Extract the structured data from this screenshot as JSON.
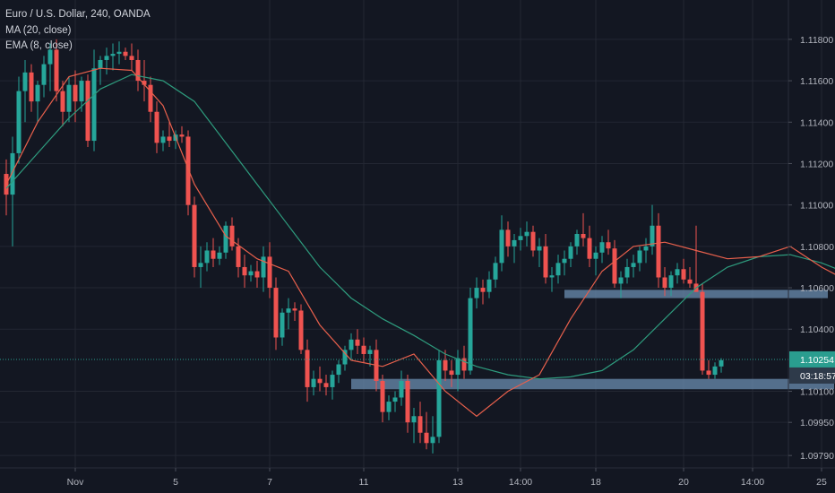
{
  "legend": {
    "symbol": "Euro / U.S. Dollar, 240, OANDA",
    "ma": "MA (20, close)",
    "ema": "EMA (8, close)"
  },
  "colors": {
    "background": "#131722",
    "grid": "#232733",
    "up": "#26a69a",
    "down": "#ef5350",
    "ma": "#2e9c7e",
    "ema": "#e8604c",
    "zone": "#6b8eb0",
    "price_badge": "#2a9d8f",
    "timer_badge": "#2e3a4a",
    "axis_text": "#b2b5be"
  },
  "chart_data": {
    "type": "candlestick",
    "symbol": "Euro / U.S. Dollar, 240, OANDA",
    "indicators": [
      "MA (20, close)",
      "EMA (8, close)"
    ],
    "ylim": [
      1.0973,
      1.1199
    ],
    "y_ticks": [
      "1.11800",
      "1.11600",
      "1.11400",
      "1.11200",
      "1.11000",
      "1.10800",
      "1.10600",
      "1.10400",
      "1.10100",
      "1.09950",
      "1.09790"
    ],
    "y_tick_values": [
      1.118,
      1.116,
      1.114,
      1.112,
      1.11,
      1.108,
      1.106,
      1.104,
      1.101,
      1.0995,
      1.0979
    ],
    "x_ticks": [
      {
        "label": "Nov",
        "index": 11
      },
      {
        "label": "5",
        "index": 27
      },
      {
        "label": "7",
        "index": 42
      },
      {
        "label": "11",
        "index": 57
      },
      {
        "label": "13",
        "index": 72
      },
      {
        "label": "14:00",
        "index": 82
      },
      {
        "label": "18",
        "index": 94
      },
      {
        "label": "20",
        "index": 108
      },
      {
        "label": "14:00",
        "index": 119
      },
      {
        "label": "25",
        "index": 130
      }
    ],
    "current_price": "1.10254",
    "current_price_value": 1.10254,
    "countdown": "03:18:57",
    "zones": [
      {
        "from_index": 89,
        "to_index": 131,
        "low": 1.1055,
        "high": 1.1059
      },
      {
        "from_index": 55,
        "to_index": 132,
        "low": 1.1011,
        "high": 1.1016
      }
    ],
    "candles": [
      [
        1.1115,
        1.1122,
        1.1095,
        1.1105
      ],
      [
        1.1105,
        1.1133,
        1.108,
        1.1125
      ],
      [
        1.1125,
        1.1162,
        1.112,
        1.1155
      ],
      [
        1.1155,
        1.117,
        1.114,
        1.1164
      ],
      [
        1.1164,
        1.1168,
        1.1145,
        1.115
      ],
      [
        1.115,
        1.116,
        1.114,
        1.1158
      ],
      [
        1.1158,
        1.1172,
        1.1152,
        1.1168
      ],
      [
        1.1168,
        1.1178,
        1.1155,
        1.1175
      ],
      [
        1.1175,
        1.118,
        1.115,
        1.1155
      ],
      [
        1.1155,
        1.116,
        1.1138,
        1.1145
      ],
      [
        1.1145,
        1.1162,
        1.114,
        1.1158
      ],
      [
        1.1158,
        1.1165,
        1.114,
        1.115
      ],
      [
        1.115,
        1.1162,
        1.1145,
        1.116
      ],
      [
        1.116,
        1.1163,
        1.1128,
        1.1131
      ],
      [
        1.1131,
        1.1175,
        1.1126,
        1.1166
      ],
      [
        1.1166,
        1.1172,
        1.1158,
        1.117
      ],
      [
        1.117,
        1.1176,
        1.1163,
        1.1172
      ],
      [
        1.1172,
        1.1178,
        1.1165,
        1.1173
      ],
      [
        1.1173,
        1.1179,
        1.1168,
        1.1174
      ],
      [
        1.1174,
        1.1176,
        1.117,
        1.1172
      ],
      [
        1.1172,
        1.1178,
        1.1165,
        1.117
      ],
      [
        1.117,
        1.1175,
        1.1155,
        1.116
      ],
      [
        1.116,
        1.117,
        1.115,
        1.1158
      ],
      [
        1.1158,
        1.1162,
        1.114,
        1.1145
      ],
      [
        1.1145,
        1.115,
        1.1125,
        1.113
      ],
      [
        1.113,
        1.1136,
        1.1126,
        1.1133
      ],
      [
        1.1133,
        1.114,
        1.1128,
        1.1131
      ],
      [
        1.1131,
        1.1136,
        1.1127,
        1.1134
      ],
      [
        1.1134,
        1.1138,
        1.113,
        1.1133
      ],
      [
        1.1133,
        1.1136,
        1.1095,
        1.11
      ],
      [
        1.11,
        1.1104,
        1.1065,
        1.107
      ],
      [
        1.107,
        1.108,
        1.106,
        1.1072
      ],
      [
        1.1072,
        1.1082,
        1.1068,
        1.1078
      ],
      [
        1.1078,
        1.1084,
        1.107,
        1.1074
      ],
      [
        1.1074,
        1.108,
        1.1071,
        1.1077
      ],
      [
        1.1077,
        1.1092,
        1.1074,
        1.109
      ],
      [
        1.109,
        1.1094,
        1.1078,
        1.108
      ],
      [
        1.108,
        1.1084,
        1.1065,
        1.107
      ],
      [
        1.107,
        1.1076,
        1.106,
        1.1066
      ],
      [
        1.1066,
        1.1071,
        1.1063,
        1.1068
      ],
      [
        1.1068,
        1.1073,
        1.106,
        1.1065
      ],
      [
        1.1065,
        1.108,
        1.1058,
        1.1075
      ],
      [
        1.1075,
        1.1082,
        1.1055,
        1.106
      ],
      [
        1.106,
        1.1065,
        1.103,
        1.1036
      ],
      [
        1.1036,
        1.105,
        1.1032,
        1.1048
      ],
      [
        1.1048,
        1.1055,
        1.104,
        1.105
      ],
      [
        1.105,
        1.1053,
        1.1044,
        1.1049
      ],
      [
        1.1049,
        1.1052,
        1.1028,
        1.103
      ],
      [
        1.103,
        1.1035,
        1.1005,
        1.1012
      ],
      [
        1.1012,
        1.102,
        1.1008,
        1.1016
      ],
      [
        1.1016,
        1.1022,
        1.101,
        1.1014
      ],
      [
        1.1014,
        1.1018,
        1.1008,
        1.1012
      ],
      [
        1.1012,
        1.102,
        1.1006,
        1.1018
      ],
      [
        1.1018,
        1.1025,
        1.1014,
        1.1023
      ],
      [
        1.1023,
        1.1032,
        1.102,
        1.103
      ],
      [
        1.103,
        1.1038,
        1.1025,
        1.1035
      ],
      [
        1.1035,
        1.104,
        1.1028,
        1.1032
      ],
      [
        1.1032,
        1.1036,
        1.1024,
        1.1028
      ],
      [
        1.1028,
        1.1032,
        1.1022,
        1.103
      ],
      [
        1.103,
        1.1035,
        1.101,
        1.1015
      ],
      [
        1.1015,
        1.1018,
        1.0995,
        1.1
      ],
      [
        1.1,
        1.1008,
        1.0996,
        1.1005
      ],
      [
        1.1005,
        1.101,
        1.1,
        1.1007
      ],
      [
        1.1007,
        1.102,
        1.1003,
        1.1015
      ],
      [
        1.1015,
        1.1018,
        1.099,
        1.0995
      ],
      [
        1.0995,
        1.1002,
        1.0985,
        1.0998
      ],
      [
        1.0998,
        1.1005,
        1.0985,
        1.099
      ],
      [
        1.099,
        1.1,
        1.0982,
        1.0985
      ],
      [
        1.0985,
        1.0998,
        1.098,
        1.0988
      ],
      [
        1.0988,
        1.103,
        1.0985,
        1.1025
      ],
      [
        1.1025,
        1.103,
        1.1015,
        1.102
      ],
      [
        1.102,
        1.1025,
        1.1012,
        1.1018
      ],
      [
        1.1018,
        1.103,
        1.101,
        1.1026
      ],
      [
        1.1026,
        1.1032,
        1.1016,
        1.102
      ],
      [
        1.102,
        1.106,
        1.1018,
        1.1055
      ],
      [
        1.1055,
        1.1065,
        1.105,
        1.106
      ],
      [
        1.106,
        1.1064,
        1.1052,
        1.1058
      ],
      [
        1.1058,
        1.1068,
        1.1055,
        1.1064
      ],
      [
        1.1064,
        1.1075,
        1.106,
        1.1072
      ],
      [
        1.1072,
        1.1095,
        1.1068,
        1.1088
      ],
      [
        1.1088,
        1.1092,
        1.1075,
        1.108
      ],
      [
        1.108,
        1.1086,
        1.1072,
        1.1083
      ],
      [
        1.1083,
        1.1089,
        1.1078,
        1.1085
      ],
      [
        1.1085,
        1.1092,
        1.108,
        1.1087
      ],
      [
        1.1087,
        1.109,
        1.1075,
        1.1078
      ],
      [
        1.1078,
        1.1084,
        1.107,
        1.108
      ],
      [
        1.108,
        1.1086,
        1.1062,
        1.1065
      ],
      [
        1.1065,
        1.107,
        1.1058,
        1.1066
      ],
      [
        1.1066,
        1.1076,
        1.1062,
        1.1072
      ],
      [
        1.1072,
        1.1078,
        1.1066,
        1.1074
      ],
      [
        1.1074,
        1.1082,
        1.107,
        1.108
      ],
      [
        1.108,
        1.1088,
        1.1076,
        1.1086
      ],
      [
        1.1086,
        1.1096,
        1.108,
        1.1084
      ],
      [
        1.1084,
        1.109,
        1.107,
        1.1074
      ],
      [
        1.1074,
        1.108,
        1.1066,
        1.1077
      ],
      [
        1.1077,
        1.1085,
        1.1072,
        1.1082
      ],
      [
        1.1082,
        1.1088,
        1.1076,
        1.1079
      ],
      [
        1.1079,
        1.1083,
        1.106,
        1.1062
      ],
      [
        1.1062,
        1.1068,
        1.1055,
        1.1065
      ],
      [
        1.1065,
        1.1074,
        1.1062,
        1.107
      ],
      [
        1.107,
        1.1076,
        1.1065,
        1.1072
      ],
      [
        1.1072,
        1.108,
        1.1068,
        1.1078
      ],
      [
        1.1078,
        1.1084,
        1.1072,
        1.108
      ],
      [
        1.108,
        1.11,
        1.1076,
        1.109
      ],
      [
        1.109,
        1.1096,
        1.106,
        1.1065
      ],
      [
        1.1065,
        1.107,
        1.1056,
        1.106
      ],
      [
        1.106,
        1.1068,
        1.1056,
        1.1066
      ],
      [
        1.1066,
        1.1072,
        1.1062,
        1.1069
      ],
      [
        1.1069,
        1.1074,
        1.1062,
        1.1064
      ],
      [
        1.1064,
        1.107,
        1.106,
        1.1062
      ],
      [
        1.1062,
        1.109,
        1.1058,
        1.1058
      ],
      [
        1.1058,
        1.1062,
        1.1018,
        1.102
      ],
      [
        1.102,
        1.1025,
        1.1016,
        1.1018
      ],
      [
        1.1018,
        1.1024,
        1.1016,
        1.1022
      ],
      [
        1.1022,
        1.1026,
        1.1019,
        1.1025
      ]
    ],
    "ma": [
      [
        0,
        1.1108
      ],
      [
        5,
        1.1125
      ],
      [
        10,
        1.1142
      ],
      [
        15,
        1.1156
      ],
      [
        20,
        1.1163
      ],
      [
        25,
        1.116
      ],
      [
        30,
        1.115
      ],
      [
        35,
        1.113
      ],
      [
        40,
        1.111
      ],
      [
        45,
        1.109
      ],
      [
        50,
        1.107
      ],
      [
        55,
        1.1055
      ],
      [
        60,
        1.1045
      ],
      [
        65,
        1.1037
      ],
      [
        70,
        1.1028
      ],
      [
        75,
        1.1022
      ],
      [
        80,
        1.1018
      ],
      [
        85,
        1.1016
      ],
      [
        90,
        1.1017
      ],
      [
        95,
        1.102
      ],
      [
        100,
        1.103
      ],
      [
        105,
        1.1045
      ],
      [
        110,
        1.106
      ],
      [
        115,
        1.107
      ],
      [
        120,
        1.1075
      ],
      [
        125,
        1.1076
      ],
      [
        130,
        1.1072
      ],
      [
        135,
        1.1066
      ],
      [
        140,
        1.106
      ]
    ],
    "ema": [
      [
        0,
        1.111
      ],
      [
        5,
        1.114
      ],
      [
        10,
        1.1162
      ],
      [
        15,
        1.1166
      ],
      [
        20,
        1.1165
      ],
      [
        25,
        1.1148
      ],
      [
        30,
        1.111
      ],
      [
        35,
        1.1085
      ],
      [
        40,
        1.1074
      ],
      [
        45,
        1.1068
      ],
      [
        50,
        1.1042
      ],
      [
        55,
        1.1025
      ],
      [
        60,
        1.1022
      ],
      [
        65,
        1.1028
      ],
      [
        70,
        1.101
      ],
      [
        75,
        1.0998
      ],
      [
        80,
        1.101
      ],
      [
        85,
        1.1018
      ],
      [
        90,
        1.1045
      ],
      [
        95,
        1.1068
      ],
      [
        100,
        1.108
      ],
      [
        105,
        1.1082
      ],
      [
        110,
        1.1078
      ],
      [
        115,
        1.1074
      ],
      [
        120,
        1.1075
      ],
      [
        125,
        1.108
      ],
      [
        130,
        1.107
      ],
      [
        135,
        1.1062
      ],
      [
        140,
        1.104
      ]
    ]
  }
}
